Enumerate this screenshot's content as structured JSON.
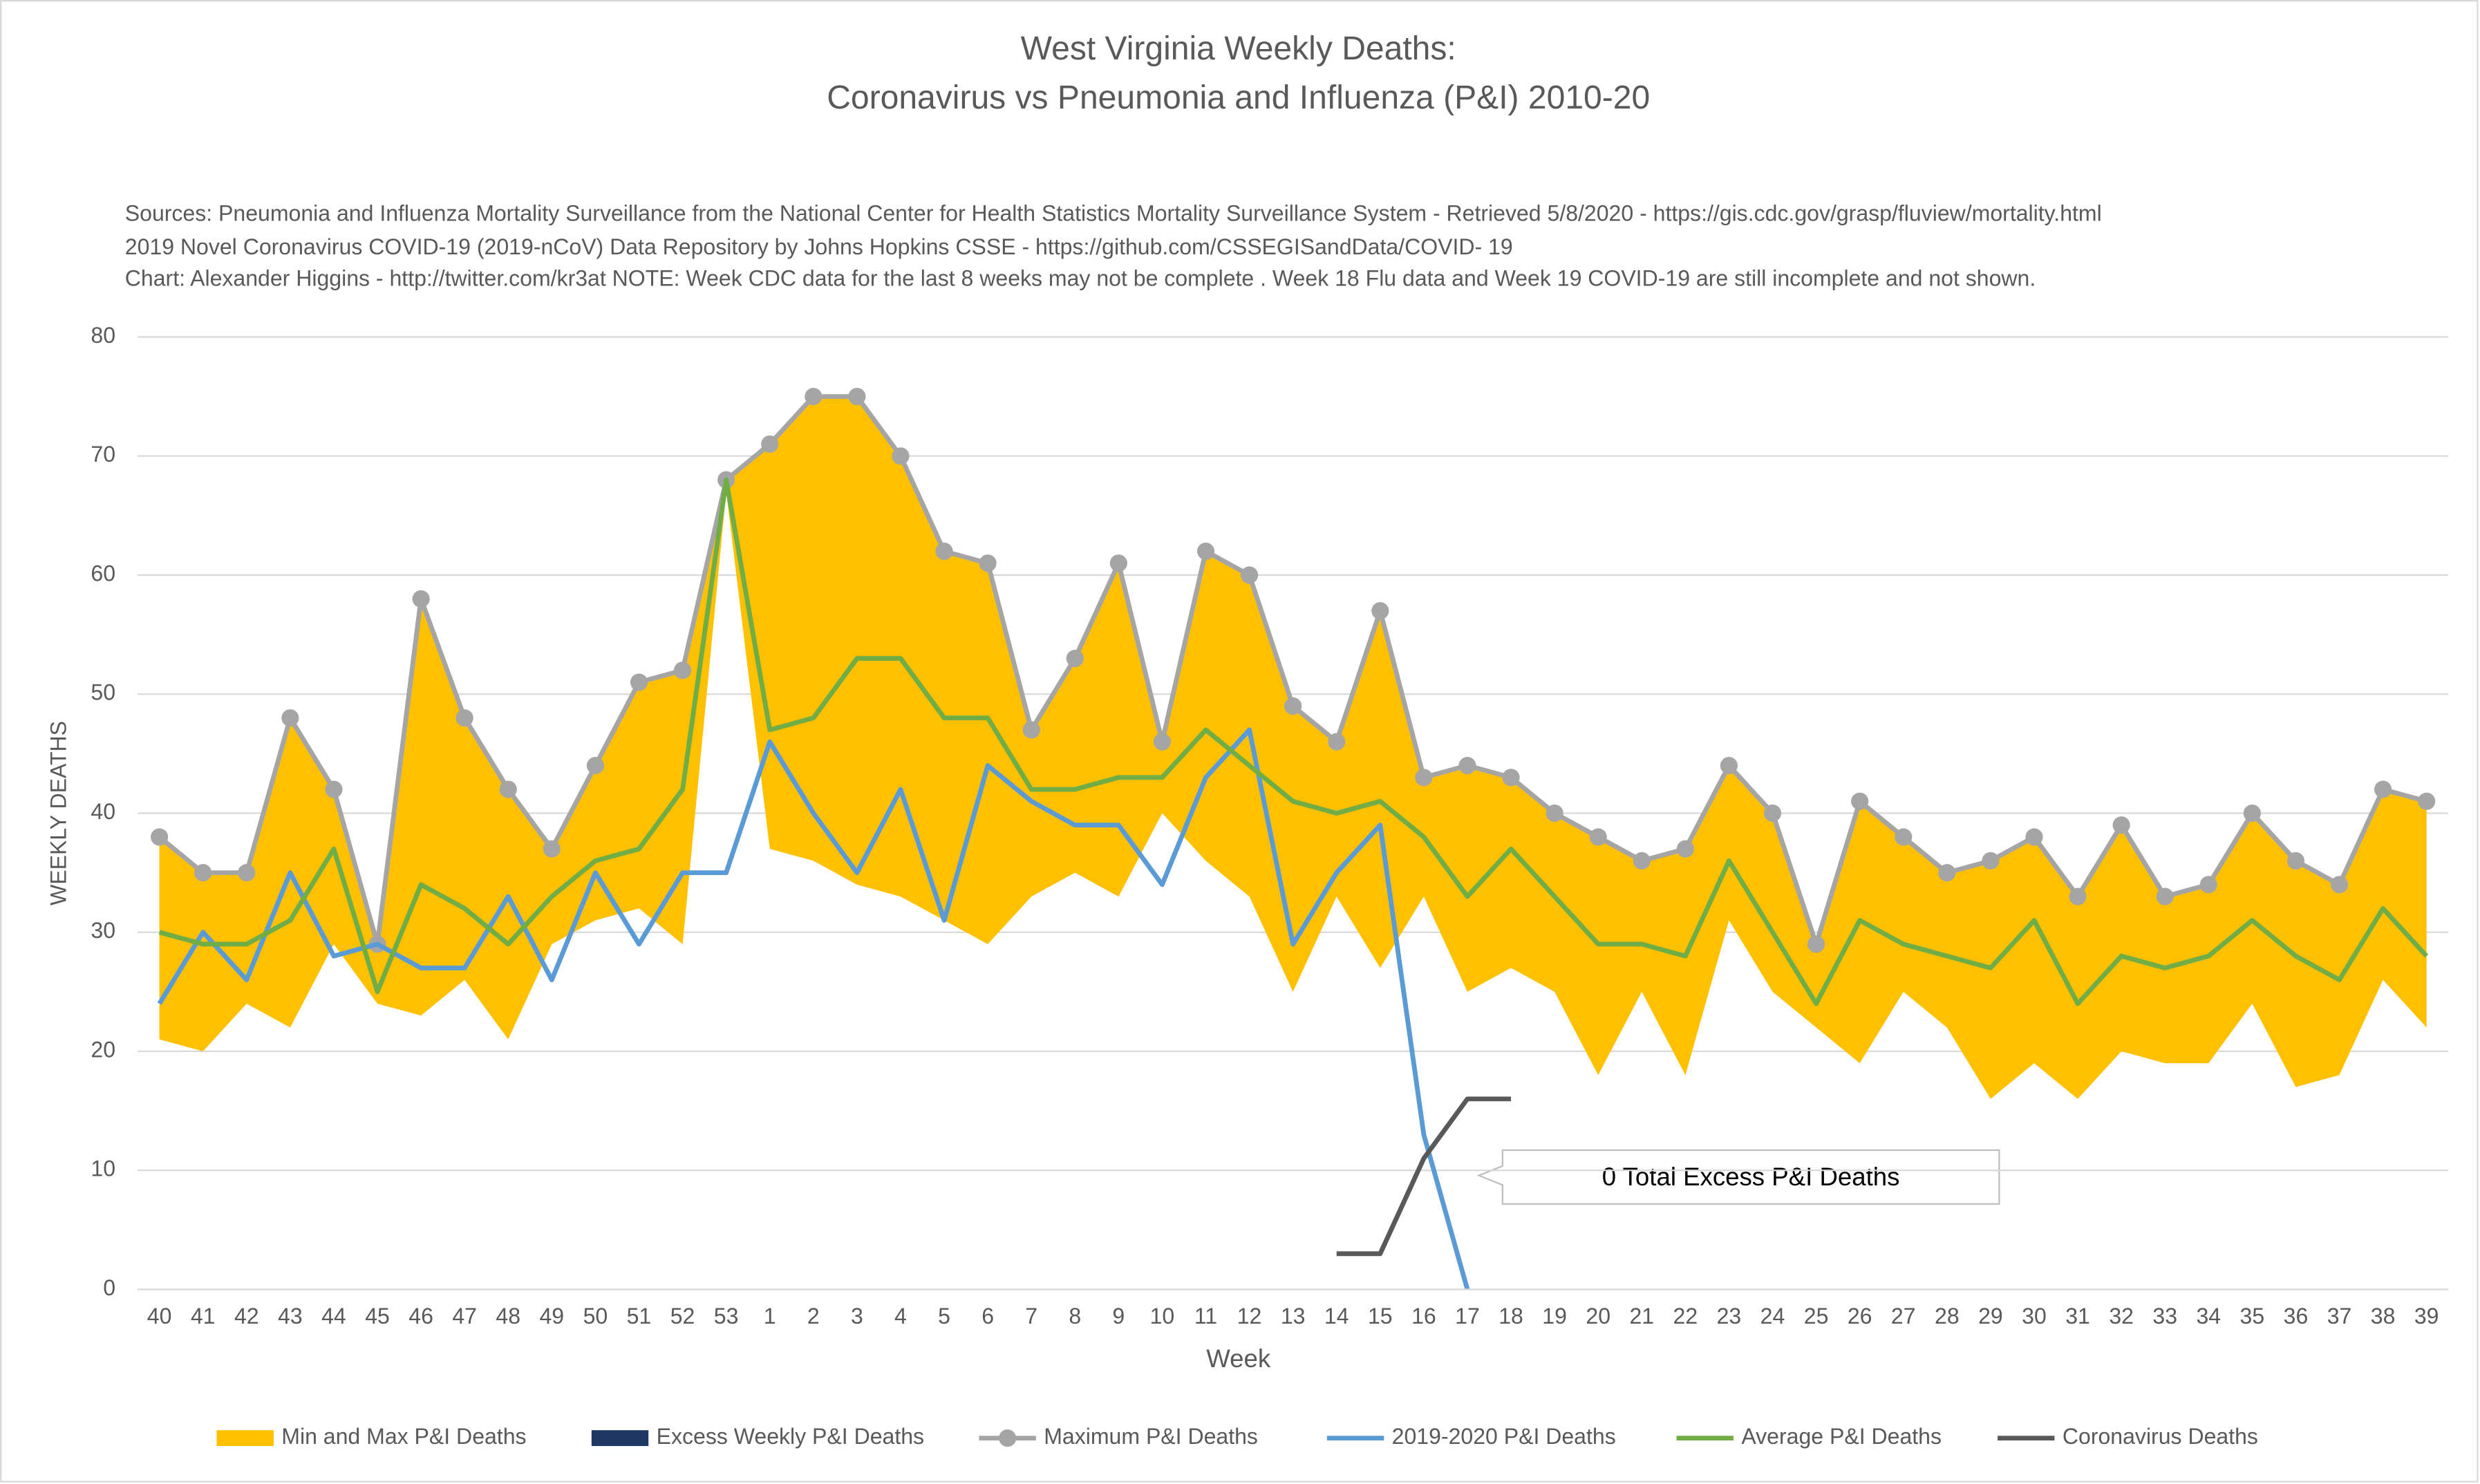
{
  "chart_data": {
    "type": "line",
    "title": [
      "West Virginia Weekly Deaths:",
      "Coronavirus vs Pneumonia and Influenza (P&I) 2010-20"
    ],
    "subtitle": [
      "Sources: Pneumonia and Influenza Mortality Surveillance from the National Center for Health Statistics Mortality Surveillance System - Retrieved 5/8/2020 - https://gis.cdc.gov/grasp/fluview/mortality.html",
      "2019 Novel Coronavirus COVID-19 (2019-nCoV) Data Repository by Johns Hopkins CSSE - https://github.com/CSSEGISandData/COVID- 19",
      "Chart: Alexander Higgins - http://twitter.com/kr3at   NOTE: Week CDC data for the last 8 weeks may not be complete . Week 18 Flu data and Week 19 COVID-19 are still incomplete and not shown."
    ],
    "x_label": "Week",
    "y_label": "WEEKLY DEATHS",
    "annotation": "0 Total Excess P&I Deaths",
    "categories": [
      "40",
      "41",
      "42",
      "43",
      "44",
      "45",
      "46",
      "47",
      "48",
      "49",
      "50",
      "51",
      "52",
      "53",
      "1",
      "2",
      "3",
      "4",
      "5",
      "6",
      "7",
      "8",
      "9",
      "10",
      "11",
      "12",
      "13",
      "14",
      "15",
      "16",
      "17",
      "18",
      "19",
      "20",
      "21",
      "22",
      "23",
      "24",
      "25",
      "26",
      "27",
      "28",
      "29",
      "30",
      "31",
      "32",
      "33",
      "34",
      "35",
      "36",
      "37",
      "38",
      "39"
    ],
    "ylim": [
      0,
      80
    ],
    "yticks": [
      0,
      10,
      20,
      30,
      40,
      50,
      60,
      70,
      80
    ],
    "grid": true,
    "legend": "bottom",
    "series": [
      {
        "name": "Min and Max P&I Deaths",
        "kind": "band",
        "color": "#ffc000",
        "values": [
          21,
          20,
          24,
          22,
          29,
          24,
          23,
          26,
          21,
          29,
          31,
          32,
          29,
          67,
          37,
          36,
          34,
          33,
          31,
          29,
          33,
          35,
          33,
          40,
          36,
          33,
          25,
          33,
          27,
          33,
          25,
          27,
          25,
          18,
          25,
          18,
          31,
          25,
          22,
          19,
          25,
          22,
          16,
          19,
          16,
          20,
          19,
          19,
          24,
          17,
          18,
          26,
          22
        ]
      },
      {
        "name": "Excess Weekly P&I Deaths",
        "kind": "bar",
        "color": "#1f3864",
        "values": [
          null,
          null,
          null,
          null,
          null,
          null,
          null,
          null,
          null,
          null,
          null,
          null,
          null,
          null,
          null,
          null,
          null,
          null,
          null,
          null,
          null,
          null,
          null,
          null,
          null,
          null,
          null,
          null,
          null,
          null,
          null,
          null,
          null,
          null,
          null,
          null,
          null,
          null,
          null,
          null,
          null,
          null,
          null,
          null,
          null,
          null,
          null,
          null,
          null,
          null,
          null,
          null,
          null
        ]
      },
      {
        "name": "Maximum P&I Deaths",
        "kind": "line-dots",
        "color": "#a5a5a5",
        "values": [
          38,
          35,
          35,
          48,
          42,
          29,
          58,
          48,
          42,
          37,
          44,
          51,
          52,
          68,
          71,
          75,
          75,
          70,
          62,
          61,
          47,
          53,
          61,
          46,
          62,
          60,
          49,
          46,
          57,
          43,
          44,
          43,
          40,
          38,
          36,
          37,
          44,
          40,
          29,
          41,
          38,
          35,
          36,
          38,
          33,
          39,
          33,
          34,
          40,
          36,
          34,
          42,
          41
        ]
      },
      {
        "name": "2019-2020 P&I Deaths",
        "kind": "line",
        "color": "#5b9bd5",
        "values": [
          24,
          30,
          26,
          35,
          28,
          29,
          27,
          27,
          33,
          26,
          35,
          29,
          35,
          35,
          46,
          40,
          35,
          42,
          31,
          44,
          41,
          39,
          39,
          34,
          43,
          47,
          29,
          35,
          39,
          13,
          0,
          null,
          null,
          null,
          null,
          null,
          null,
          null,
          null,
          null,
          null,
          null,
          null,
          null,
          null,
          null,
          null,
          null,
          null,
          null,
          null,
          null,
          null
        ]
      },
      {
        "name": "Average P&I Deaths",
        "kind": "line",
        "color": "#70ad47",
        "values": [
          30,
          29,
          29,
          31,
          37,
          25,
          34,
          32,
          29,
          33,
          36,
          37,
          42,
          68,
          47,
          48,
          53,
          53,
          48,
          48,
          42,
          42,
          43,
          43,
          47,
          44,
          41,
          40,
          41,
          38,
          33,
          37,
          33,
          29,
          29,
          28,
          36,
          30,
          24,
          31,
          29,
          28,
          27,
          31,
          24,
          28,
          27,
          28,
          31,
          28,
          26,
          32,
          28
        ]
      },
      {
        "name": "Coronavirus Deaths",
        "kind": "line",
        "color": "#595959",
        "values": [
          null,
          null,
          null,
          null,
          null,
          null,
          null,
          null,
          null,
          null,
          null,
          null,
          null,
          null,
          null,
          null,
          null,
          null,
          null,
          null,
          null,
          null,
          null,
          null,
          null,
          null,
          null,
          3,
          3,
          11,
          16,
          16,
          null,
          null,
          null,
          null,
          null,
          null,
          null,
          null,
          null,
          null,
          null,
          null,
          null,
          null,
          null,
          null,
          null,
          null,
          null,
          null,
          null
        ]
      }
    ]
  }
}
